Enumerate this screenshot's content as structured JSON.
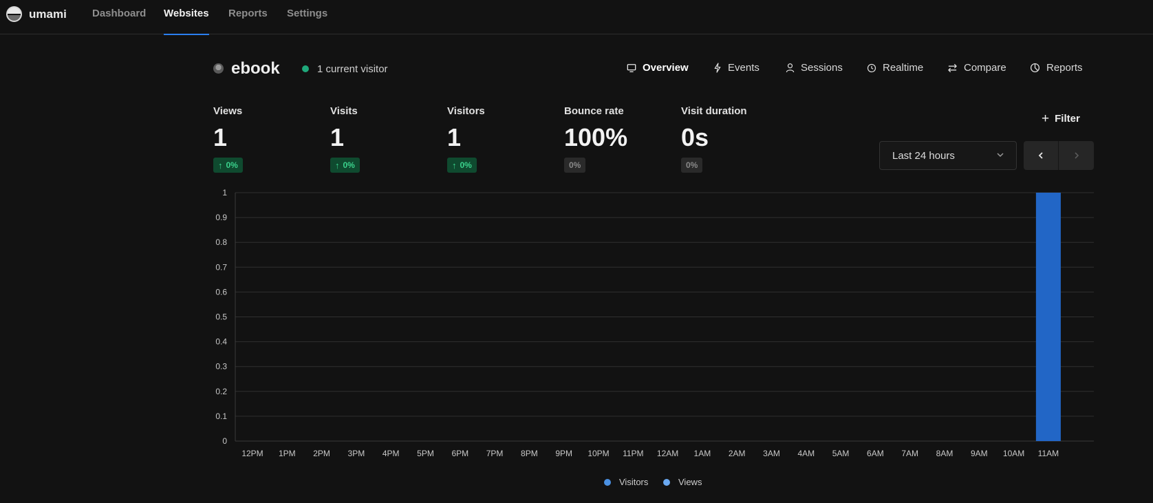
{
  "brand": {
    "name": "umami"
  },
  "nav": {
    "items": [
      {
        "label": "Dashboard"
      },
      {
        "label": "Websites"
      },
      {
        "label": "Reports"
      },
      {
        "label": "Settings"
      }
    ],
    "active": "Websites"
  },
  "website": {
    "name": "ebook",
    "current_visitors": "1 current visitor"
  },
  "tabs": [
    {
      "label": "Overview",
      "icon": "monitor-icon"
    },
    {
      "label": "Events",
      "icon": "lightning-icon"
    },
    {
      "label": "Sessions",
      "icon": "user-icon"
    },
    {
      "label": "Realtime",
      "icon": "clock-icon"
    },
    {
      "label": "Compare",
      "icon": "arrows-icon"
    },
    {
      "label": "Reports",
      "icon": "pie-icon"
    }
  ],
  "metrics": [
    {
      "label": "Views",
      "value": "1",
      "change": "0%",
      "trend": "up"
    },
    {
      "label": "Visits",
      "value": "1",
      "change": "0%",
      "trend": "up"
    },
    {
      "label": "Visitors",
      "value": "1",
      "change": "0%",
      "trend": "up"
    },
    {
      "label": "Bounce rate",
      "value": "100%",
      "change": "0%",
      "trend": "flat"
    },
    {
      "label": "Visit duration",
      "value": "0s",
      "change": "0%",
      "trend": "flat"
    }
  ],
  "controls": {
    "filter_label": "Filter",
    "date_range": "Last 24 hours"
  },
  "colors": {
    "accent": "#2b7ff0",
    "live": "#1fa87b",
    "visitors": "#4a90e2",
    "views": "#6aa8f0",
    "bar": "#1f63c0"
  },
  "chart_data": {
    "type": "bar",
    "categories": [
      "12PM",
      "1PM",
      "2PM",
      "3PM",
      "4PM",
      "5PM",
      "6PM",
      "7PM",
      "8PM",
      "9PM",
      "10PM",
      "11PM",
      "12AM",
      "1AM",
      "2AM",
      "3AM",
      "4AM",
      "5AM",
      "6AM",
      "7AM",
      "8AM",
      "9AM",
      "10AM",
      "11AM"
    ],
    "series": [
      {
        "name": "Visitors",
        "values": [
          0,
          0,
          0,
          0,
          0,
          0,
          0,
          0,
          0,
          0,
          0,
          0,
          0,
          0,
          0,
          0,
          0,
          0,
          0,
          0,
          0,
          0,
          0,
          1
        ]
      },
      {
        "name": "Views",
        "values": [
          0,
          0,
          0,
          0,
          0,
          0,
          0,
          0,
          0,
          0,
          0,
          0,
          0,
          0,
          0,
          0,
          0,
          0,
          0,
          0,
          0,
          0,
          0,
          1
        ]
      }
    ],
    "ylim": [
      0,
      1
    ],
    "yticks": [
      "0",
      "0.1",
      "0.2",
      "0.3",
      "0.4",
      "0.5",
      "0.6",
      "0.7",
      "0.8",
      "0.9",
      "1"
    ],
    "grid": true,
    "legend_position": "bottom"
  }
}
